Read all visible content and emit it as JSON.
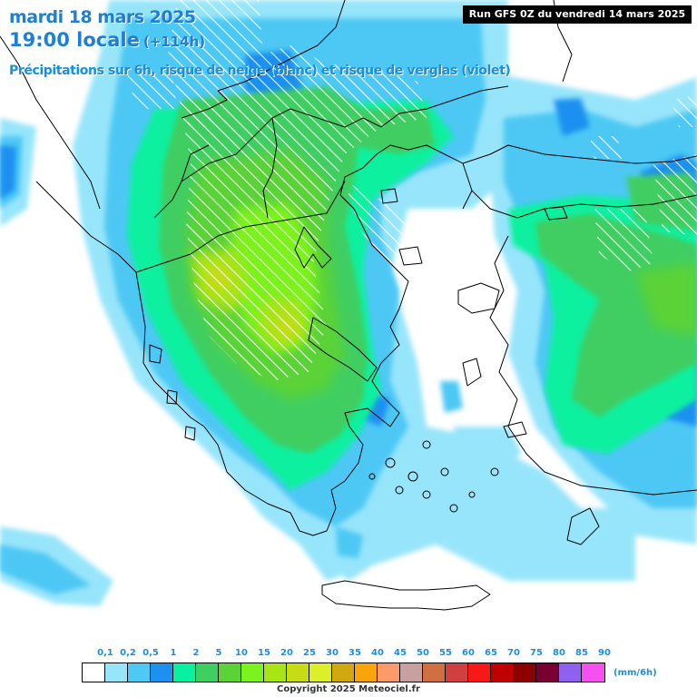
{
  "header": {
    "date": "mardi 18 mars 2025",
    "time": "19:00 locale",
    "lead": "(+114h)",
    "subtitle": "Précipitations sur 6h, risque de neige (blanc) et risque de verglas (violet)",
    "run": "Run GFS 0Z du vendredi 14 mars 2025"
  },
  "legend": {
    "unit": "(mm/6h)",
    "ticks": [
      "0,1",
      "0,2",
      "0,5",
      "1",
      "2",
      "5",
      "10",
      "15",
      "20",
      "25",
      "30",
      "35",
      "40",
      "45",
      "50",
      "55",
      "60",
      "65",
      "70",
      "75",
      "80",
      "85",
      "90"
    ],
    "colors": [
      "#ffffff",
      "#97e5fb",
      "#4ec8f4",
      "#1e90f0",
      "#08f0a0",
      "#3fce62",
      "#5ad238",
      "#7cf21e",
      "#a8e416",
      "#c8dc16",
      "#dcf02a",
      "#d2a810",
      "#f8a40a",
      "#fc9a6a",
      "#c8a0a0",
      "#d07040",
      "#d04040",
      "#f81818",
      "#c00000",
      "#8c0000",
      "#780030",
      "#9060f0",
      "#f850f0"
    ]
  },
  "footer": {
    "copyright": "Copyright 2025 Meteociel.fr"
  },
  "map": {
    "region": "Greece and Aegean Sea",
    "colors": {
      "background": "#ffffff",
      "light_blue": "#97e5fb",
      "sky": "#4ec8f4",
      "blue": "#1e90f0",
      "teal": "#08f0a0",
      "green": "#3fce62",
      "mid_green": "#5ad238",
      "bright_green": "#7cf21e",
      "yellow_green": "#a8e416",
      "olive": "#c8dc16",
      "snow_hatch": "#ffffff",
      "borders": "#000000"
    }
  }
}
